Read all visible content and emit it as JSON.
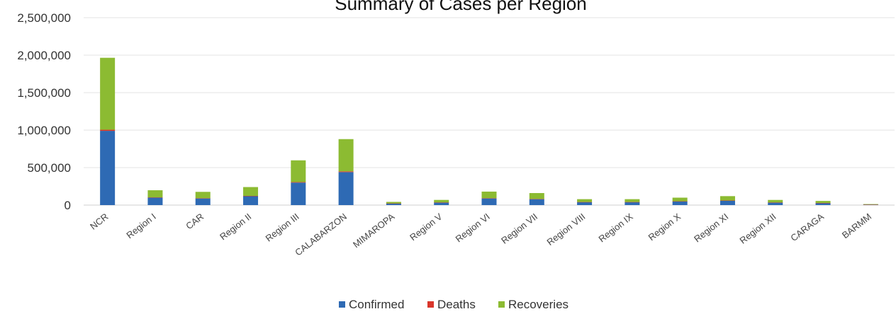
{
  "chart_data": {
    "type": "bar",
    "stacked": true,
    "title": "Summary of Cases per Region",
    "categories": [
      "NCR",
      "Region I",
      "CAR",
      "Region II",
      "Region III",
      "CALABARZON",
      "MIMAROPA",
      "Region V",
      "Region VI",
      "Region VII",
      "Region VIII",
      "Region IX",
      "Region X",
      "Region XI",
      "Region XII",
      "CARAGA",
      "BARMM"
    ],
    "series": [
      {
        "name": "Confirmed",
        "color": "#2e6ab4",
        "values": [
          990000,
          100000,
          90000,
          120000,
          300000,
          440000,
          22000,
          35000,
          90000,
          80000,
          40000,
          40000,
          50000,
          60000,
          35000,
          28000,
          7000
        ]
      },
      {
        "name": "Deaths",
        "color": "#d9362b",
        "values": [
          15000,
          3000,
          1500,
          2500,
          7000,
          10000,
          500,
          1000,
          2000,
          2500,
          1000,
          1000,
          1200,
          1500,
          700,
          500,
          300
        ]
      },
      {
        "name": "Recoveries",
        "color": "#8cbb32",
        "values": [
          960000,
          95000,
          85000,
          118000,
          290000,
          430000,
          20000,
          33000,
          88000,
          78000,
          38000,
          38000,
          48000,
          58000,
          33000,
          27000,
          6000
        ]
      }
    ],
    "yticks": [
      "0",
      "500,000",
      "1,000,000",
      "1,500,000",
      "2,000,000",
      "2,500,000"
    ],
    "ylim": [
      0,
      2500000
    ],
    "grid": true,
    "legend_position": "bottom"
  }
}
